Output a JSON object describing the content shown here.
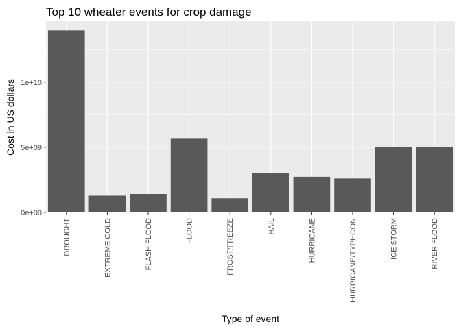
{
  "chart_data": {
    "type": "bar",
    "title": "Top 10 wheater events for crop damage",
    "xlabel": "Type of event",
    "ylabel": "Cost in US dollars",
    "categories": [
      "DROUGHT",
      "EXTREME COLD",
      "FLASH FLOOD",
      "FLOOD",
      "FROST/FREEZE",
      "HAIL",
      "HURRICANE",
      "HURRICANE/TYPHOON",
      "ICE STORM",
      "RIVER FLOOD"
    ],
    "values": [
      13970000000,
      1290000000,
      1420000000,
      5660000000,
      1090000000,
      3030000000,
      2740000000,
      2610000000,
      5020000000,
      5030000000
    ],
    "ylim": [
      0,
      14670000000
    ],
    "yticks": [
      0,
      5000000000,
      10000000000
    ],
    "ytick_labels": [
      "0e+00",
      "5e+09",
      "1e+10"
    ],
    "grid": true,
    "colors": {
      "panel": "#ebebeb",
      "bar": "#595959",
      "grid": "#ffffff"
    }
  }
}
